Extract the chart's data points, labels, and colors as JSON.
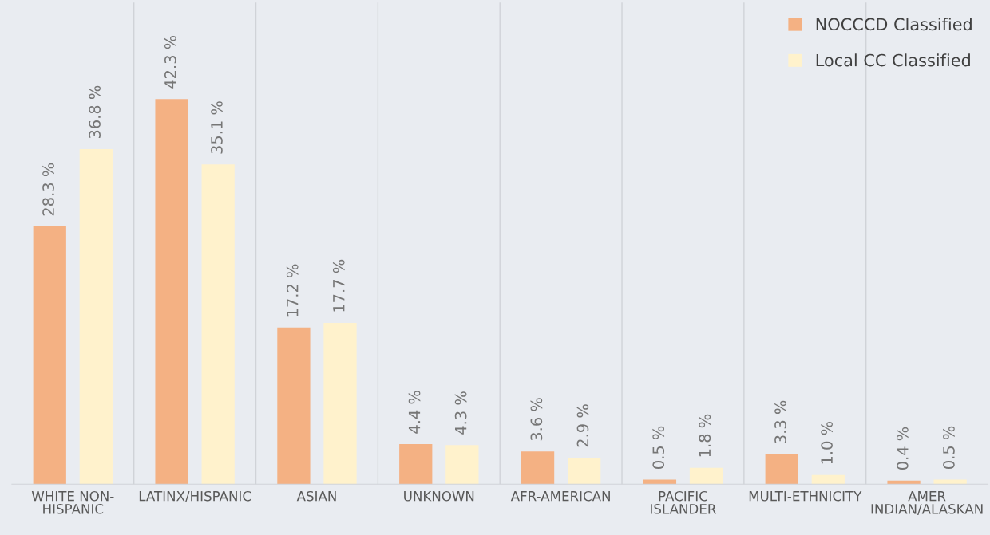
{
  "chart_data": {
    "type": "bar",
    "categories": [
      "WHITE NON-\nHISPANIC",
      "LATINX/HISPANIC",
      "ASIAN",
      "UNKNOWN",
      "AFR-AMERICAN",
      "PACIFIC\nISLANDER",
      "MULTI-ETHNICITY",
      "AMER\nINDIAN/ALASKAN"
    ],
    "series": [
      {
        "name": "NOCCCD Classified",
        "color": "#f4b183",
        "values": [
          28.3,
          42.3,
          17.2,
          4.4,
          3.6,
          0.5,
          3.3,
          0.4
        ],
        "value_labels": [
          "28.3 %",
          "42.3 %",
          "17.2 %",
          "4.4 %",
          "3.6 %",
          "0.5 %",
          "3.3 %",
          "0.4 %"
        ]
      },
      {
        "name": "Local CC Classified",
        "color": "#fff2cc",
        "values": [
          36.8,
          35.1,
          17.7,
          4.3,
          2.9,
          1.8,
          1.0,
          0.5
        ],
        "value_labels": [
          "36.8 %",
          "35.1 %",
          "17.7 %",
          "4.3 %",
          "2.9 %",
          "1.8 %",
          "1.0 %",
          "0.5 %"
        ]
      }
    ],
    "grid": "x",
    "legend": "top right"
  }
}
